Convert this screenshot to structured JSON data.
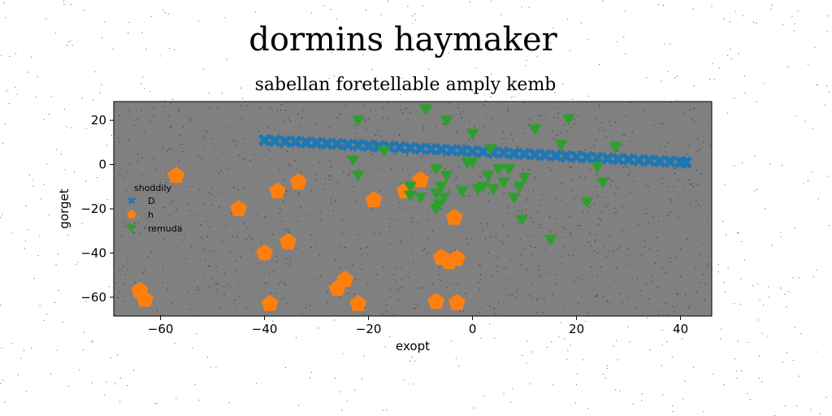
{
  "chart_data": {
    "type": "scatter",
    "title": "dormins haymaker",
    "subtitle": "sabellan foretellable amply kemb",
    "xlabel": "exopt",
    "ylabel": "gorget",
    "xlim": [
      -69,
      46
    ],
    "ylim": [
      -68.5,
      28.5
    ],
    "xticks": [
      -60,
      -40,
      -20,
      0,
      20,
      40
    ],
    "yticks": [
      20,
      0,
      -20,
      -40,
      -60
    ],
    "xtick_labels": [
      "−60",
      "−40",
      "−20",
      "0",
      "20",
      "40"
    ],
    "ytick_labels": [
      "20",
      "0",
      "−20",
      "−40",
      "−60"
    ],
    "grid": false,
    "legend": {
      "title": "shoddily",
      "position": "center-left"
    },
    "series": [
      {
        "name": "D",
        "marker": "x",
        "color": "#1f77b4",
        "x": [
          -40,
          -38,
          -36,
          -34,
          -32,
          -30,
          -28,
          -26,
          -24,
          -22,
          -20,
          -18,
          -16,
          -14,
          -12,
          -10,
          -8,
          -6,
          -4,
          -2,
          0,
          2,
          4,
          6,
          8,
          10,
          12,
          14,
          16,
          18,
          20,
          22,
          24,
          26,
          28,
          30,
          32,
          34,
          36,
          38,
          40,
          41
        ],
        "y": [
          11,
          10.8,
          10.5,
          10.3,
          10.0,
          9.8,
          9.5,
          9.3,
          9.0,
          8.8,
          8.5,
          8.3,
          8.0,
          7.8,
          7.5,
          7.3,
          7.0,
          6.8,
          6.5,
          6.3,
          6.0,
          5.8,
          5.5,
          5.3,
          5.0,
          4.8,
          4.5,
          4.3,
          4.0,
          3.8,
          3.5,
          3.3,
          3.0,
          2.8,
          2.5,
          2.3,
          2.0,
          1.8,
          1.5,
          1.3,
          1.0,
          1.0
        ]
      },
      {
        "name": "h",
        "marker": "pentagon",
        "color": "#ff7f0e",
        "x": [
          -57,
          -45,
          -37.5,
          -33.5,
          -35.5,
          -40,
          -19,
          -13,
          -10,
          -3.5,
          -64,
          -63,
          -39,
          -26,
          -24.5,
          -22,
          -7,
          -3,
          -6,
          -4.5,
          -3
        ],
        "y": [
          -5,
          -20,
          -12,
          -8,
          -35,
          -40,
          -16,
          -12,
          -7,
          -24,
          -57,
          -61,
          -63,
          -56,
          -52,
          -63,
          -62,
          -62.5,
          -42,
          -44,
          -42.5
        ]
      },
      {
        "name": "remuda",
        "marker": "triangle-down",
        "color": "#2ca02c",
        "x": [
          -22,
          -9,
          -5,
          0,
          12,
          18.5,
          -17,
          -23,
          -22,
          -12,
          -12,
          -10,
          -7,
          -6,
          -5,
          -7,
          -6.5,
          -5.5,
          -2,
          -1,
          0,
          1,
          2,
          3,
          3.5,
          4,
          5,
          6,
          7,
          8,
          9,
          10,
          17,
          24,
          25,
          27.5,
          22,
          15,
          9.5,
          -12,
          -7
        ],
        "y": [
          20,
          25,
          20,
          14,
          16,
          20.5,
          6,
          2,
          -5,
          -10,
          -14,
          -15,
          -13,
          -10,
          -5,
          -20,
          -18,
          -15,
          -12,
          1,
          1,
          -11,
          -10,
          -5,
          7,
          -11,
          -2,
          -8,
          -2,
          -15,
          -10,
          -6,
          9,
          -1,
          -8,
          8,
          -17,
          -34,
          -25,
          -10,
          -2
        ]
      }
    ]
  }
}
